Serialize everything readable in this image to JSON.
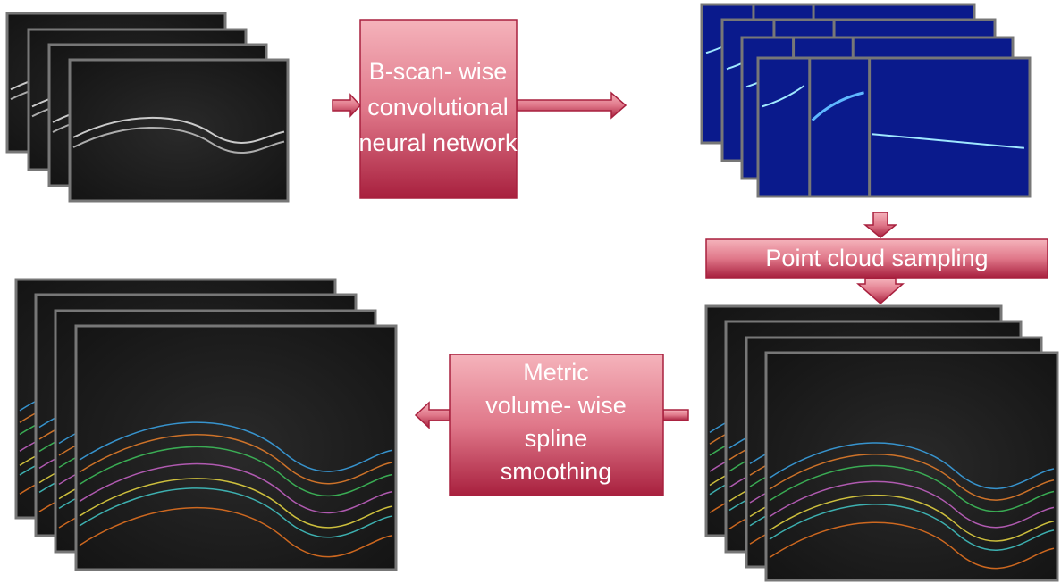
{
  "boxes": [
    {
      "lines": [
        "B-scan- wise",
        "convolutional",
        "neural network"
      ]
    },
    {
      "lines": [
        "Point cloud sampling"
      ]
    },
    {
      "lines": [
        "Metric",
        "volume- wise",
        "spline",
        "smoothing"
      ]
    }
  ]
}
